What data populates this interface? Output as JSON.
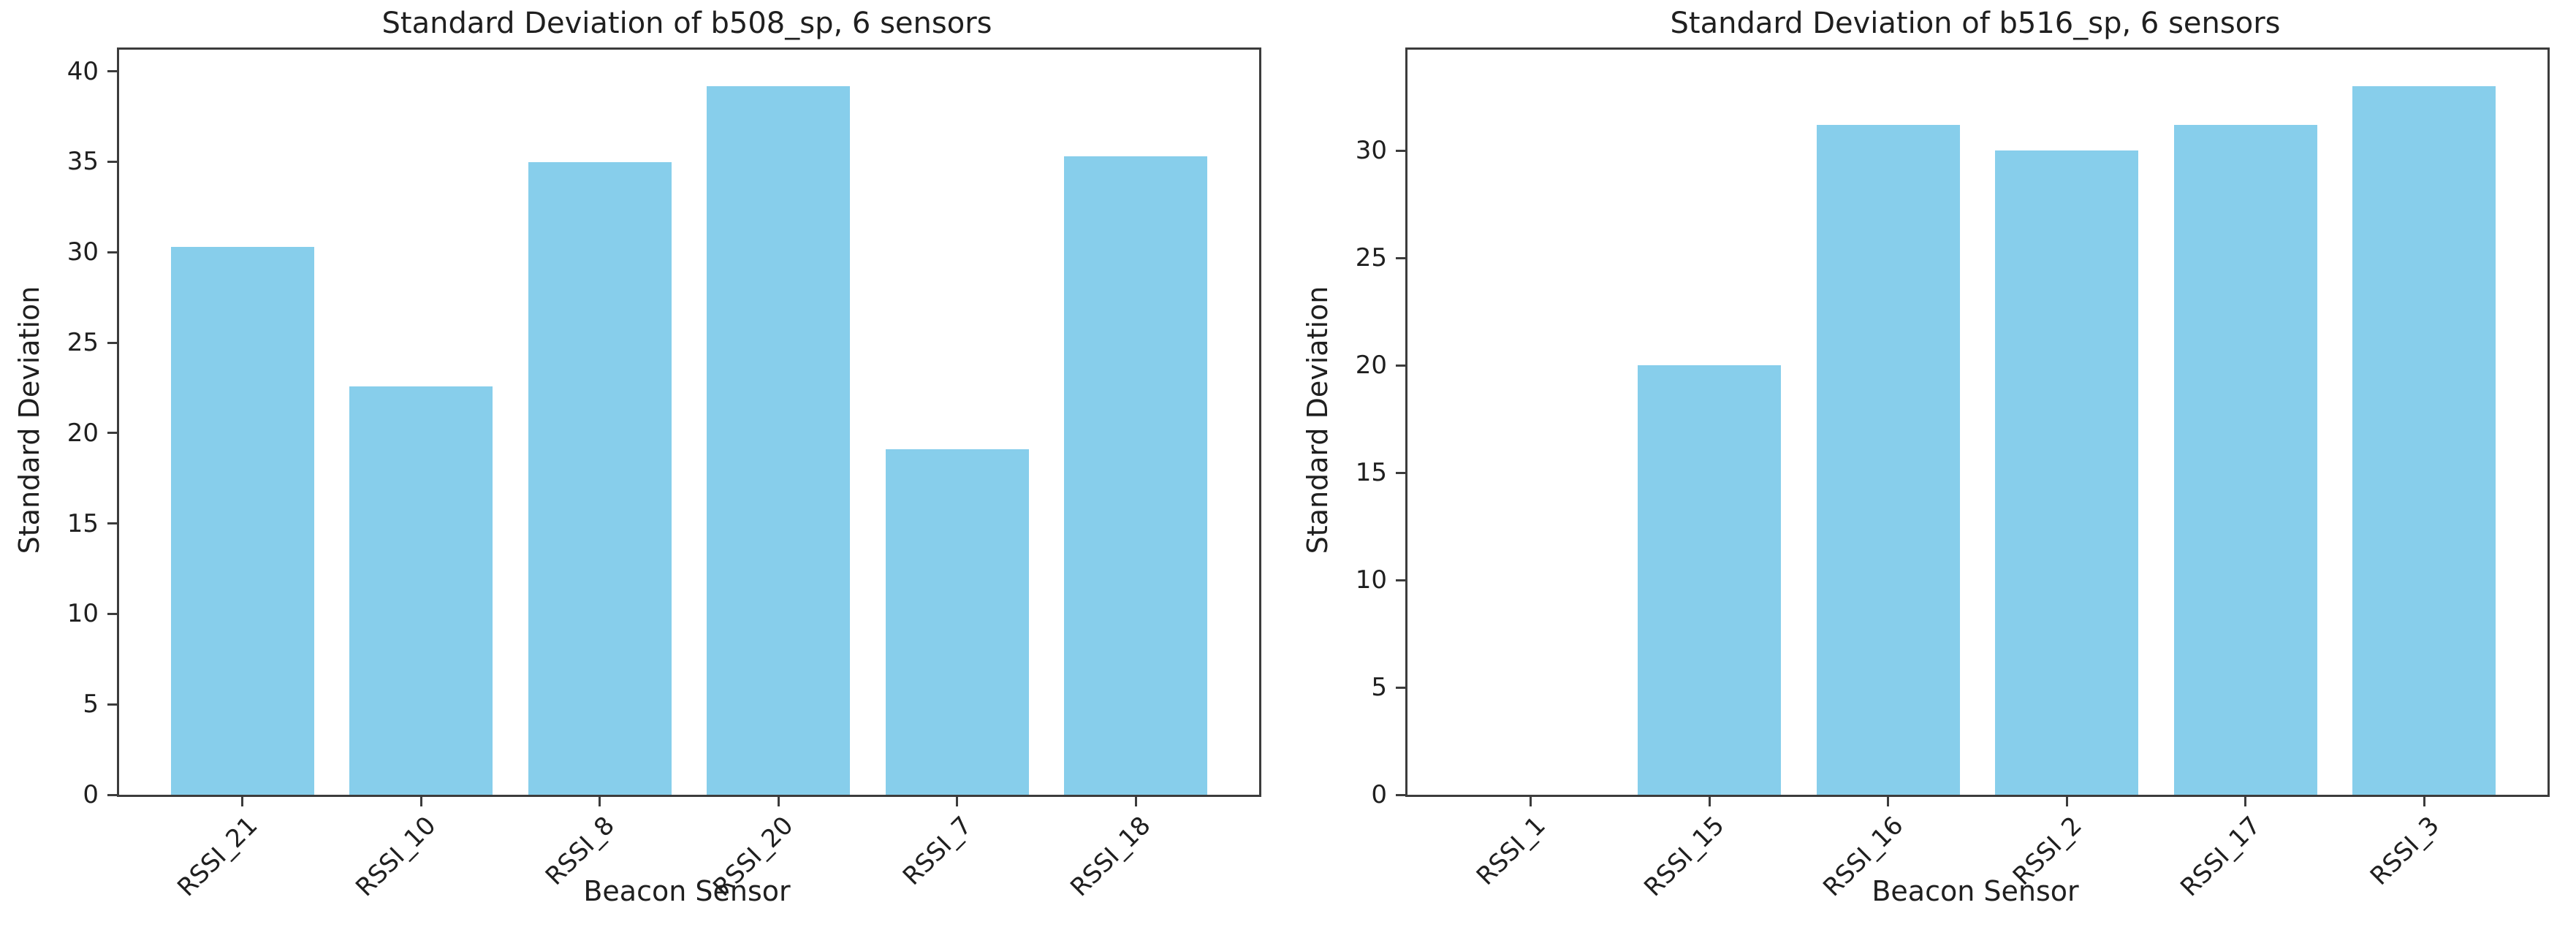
{
  "colors": {
    "bar_fill": "#87CEEB",
    "spine": "#3c3c3c",
    "text": "#1f1f1f",
    "background": "#ffffff"
  },
  "chart_data": [
    {
      "type": "bar",
      "title": "Standard Deviation of b508_sp, 6 sensors",
      "xlabel": "Beacon Sensor",
      "ylabel": "Standard Deviation",
      "categories": [
        "RSSI_21",
        "RSSI_10",
        "RSSI_8",
        "RSSI_20",
        "RSSI_7",
        "RSSI_18"
      ],
      "values": [
        30.3,
        22.6,
        35.0,
        39.2,
        19.1,
        35.3
      ],
      "ylim": [
        0,
        41.2
      ],
      "yticks": [
        0,
        5,
        10,
        15,
        20,
        25,
        30,
        35,
        40
      ],
      "xtick_rotation_deg": 45,
      "bar_color": "#87CEEB",
      "grid": false,
      "legend": null
    },
    {
      "type": "bar",
      "title": "Standard Deviation of b516_sp, 6 sensors",
      "xlabel": "Beacon Sensor",
      "ylabel": "Standard Deviation",
      "categories": [
        "RSSI_1",
        "RSSI_15",
        "RSSI_16",
        "RSSI_2",
        "RSSI_17",
        "RSSI_3"
      ],
      "values": [
        0.0,
        20.0,
        31.2,
        30.0,
        31.2,
        33.0
      ],
      "ylim": [
        0,
        34.7
      ],
      "yticks": [
        0,
        5,
        10,
        15,
        20,
        25,
        30
      ],
      "xtick_rotation_deg": 45,
      "bar_color": "#87CEEB",
      "grid": false,
      "legend": null
    }
  ]
}
